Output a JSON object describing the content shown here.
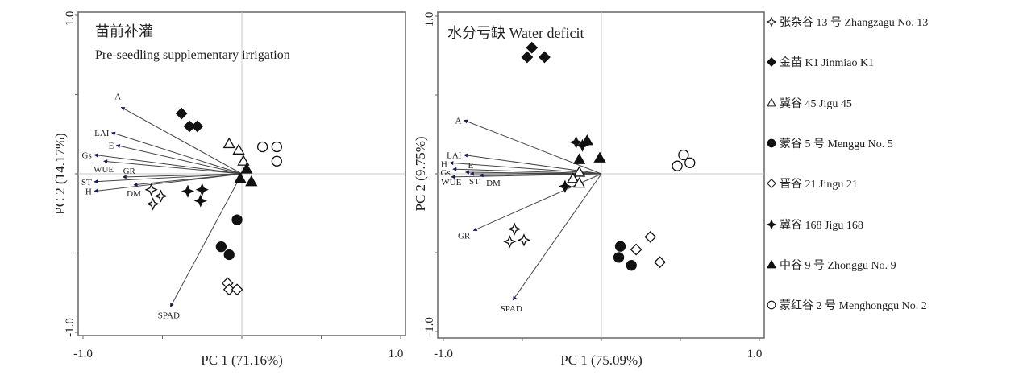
{
  "chart_data": [
    {
      "type": "scatter",
      "subtype": "pca-biplot",
      "title_cn": "苗前补灌",
      "title_en": "Pre-seedling supplementary irrigation",
      "xlabel": "PC 1 (71.16%)",
      "ylabel": "PC 2 (14.17%)",
      "xlim": [
        -1.0,
        1.0
      ],
      "ylim": [
        -1.0,
        1.0
      ],
      "xtick_labels": [
        "-1.0",
        "1.0"
      ],
      "ytick_labels": [
        "1.0",
        "-1.0"
      ],
      "vectors": [
        {
          "name": "A",
          "x": -0.76,
          "y": 0.42
        },
        {
          "name": "LAI",
          "x": -0.82,
          "y": 0.26
        },
        {
          "name": "E",
          "x": -0.79,
          "y": 0.18
        },
        {
          "name": "Gs",
          "x": -0.93,
          "y": 0.12
        },
        {
          "name": "WUE",
          "x": -0.87,
          "y": 0.08
        },
        {
          "name": "GR",
          "x": -0.75,
          "y": -0.02
        },
        {
          "name": "ST",
          "x": -0.93,
          "y": -0.05
        },
        {
          "name": "H",
          "x": -0.93,
          "y": -0.11
        },
        {
          "name": "DM",
          "x": -0.68,
          "y": -0.07
        },
        {
          "name": "SPAD",
          "x": -0.45,
          "y": -0.84
        }
      ],
      "series": [
        {
          "key": "zhangzagu13",
          "points": [
            [
              -0.57,
              -0.1
            ],
            [
              -0.51,
              -0.14
            ],
            [
              -0.56,
              -0.19
            ]
          ]
        },
        {
          "key": "jinmiaoK1",
          "points": [
            [
              -0.38,
              0.38
            ],
            [
              -0.33,
              0.3
            ],
            [
              -0.28,
              0.3
            ]
          ]
        },
        {
          "key": "jigu45",
          "points": [
            [
              -0.08,
              0.19
            ],
            [
              -0.02,
              0.15
            ],
            [
              0.01,
              0.08
            ]
          ]
        },
        {
          "key": "menggu5",
          "points": [
            [
              -0.03,
              -0.29
            ],
            [
              -0.13,
              -0.46
            ],
            [
              -0.08,
              -0.51
            ]
          ]
        },
        {
          "key": "jingu21",
          "points": [
            [
              -0.09,
              -0.69
            ],
            [
              -0.08,
              -0.73
            ],
            [
              -0.03,
              -0.73
            ]
          ]
        },
        {
          "key": "jigu168",
          "points": [
            [
              -0.34,
              -0.11
            ],
            [
              -0.25,
              -0.1
            ],
            [
              -0.26,
              -0.17
            ]
          ]
        },
        {
          "key": "zhonggu9",
          "points": [
            [
              0.03,
              0.03
            ],
            [
              -0.01,
              -0.03
            ],
            [
              0.06,
              -0.05
            ]
          ]
        },
        {
          "key": "menghonggu2",
          "points": [
            [
              0.13,
              0.17
            ],
            [
              0.22,
              0.17
            ],
            [
              0.22,
              0.08
            ]
          ]
        }
      ]
    },
    {
      "type": "scatter",
      "subtype": "pca-biplot",
      "title_cn": "水分亏缺 Water deficit",
      "title_en": "",
      "xlabel": "PC 1 (75.09%)",
      "ylabel": "PC 2 (9.75%)",
      "xlim": [
        -1.0,
        1.0
      ],
      "ylim": [
        -1.0,
        1.0
      ],
      "xtick_labels": [
        "-1.0",
        "1.0"
      ],
      "ytick_labels": [
        "1.0",
        "-1.0"
      ],
      "vectors": [
        {
          "name": "A",
          "x": -0.87,
          "y": 0.34
        },
        {
          "name": "LAI",
          "x": -0.87,
          "y": 0.12
        },
        {
          "name": "H",
          "x": -0.96,
          "y": 0.07
        },
        {
          "name": "Gs",
          "x": -0.94,
          "y": 0.03
        },
        {
          "name": "E",
          "x": -0.86,
          "y": 0.01
        },
        {
          "name": "ST",
          "x": -0.83,
          "y": 0.0
        },
        {
          "name": "WUE",
          "x": -0.95,
          "y": -0.02
        },
        {
          "name": "DM",
          "x": -0.77,
          "y": -0.01
        },
        {
          "name": "GR",
          "x": -0.81,
          "y": -0.36
        },
        {
          "name": "SPAD",
          "x": -0.56,
          "y": -0.8
        }
      ],
      "series": [
        {
          "key": "zhangzagu13",
          "points": [
            [
              -0.55,
              -0.35
            ],
            [
              -0.58,
              -0.43
            ],
            [
              -0.49,
              -0.42
            ]
          ]
        },
        {
          "key": "jinmiaoK1",
          "points": [
            [
              -0.44,
              0.8
            ],
            [
              -0.47,
              0.74
            ],
            [
              -0.36,
              0.74
            ]
          ]
        },
        {
          "key": "jigu45",
          "points": [
            [
              -0.14,
              0.01
            ],
            [
              -0.18,
              -0.03
            ],
            [
              -0.14,
              -0.06
            ]
          ]
        },
        {
          "key": "menggu5",
          "points": [
            [
              0.12,
              -0.46
            ],
            [
              0.11,
              -0.53
            ],
            [
              0.19,
              -0.58
            ]
          ]
        },
        {
          "key": "jingu21",
          "points": [
            [
              0.31,
              -0.4
            ],
            [
              0.22,
              -0.48
            ],
            [
              0.37,
              -0.56
            ]
          ]
        },
        {
          "key": "jigu168",
          "points": [
            [
              -0.16,
              0.2
            ],
            [
              -0.12,
              0.18
            ],
            [
              -0.23,
              -0.08
            ]
          ]
        },
        {
          "key": "zhonggu9",
          "points": [
            [
              -0.09,
              0.21
            ],
            [
              -0.14,
              0.09
            ],
            [
              -0.01,
              0.1
            ]
          ]
        },
        {
          "key": "menghonggu2",
          "points": [
            [
              0.52,
              0.12
            ],
            [
              0.56,
              0.07
            ],
            [
              0.48,
              0.05
            ]
          ]
        }
      ]
    }
  ],
  "legend": {
    "placement": "right",
    "items": [
      {
        "key": "zhangzagu13",
        "label": "张杂谷 13 号 Zhangzagu No. 13",
        "marker": "open-star"
      },
      {
        "key": "jinmiaoK1",
        "label": "金苗 K1 Jinmiao K1",
        "marker": "filled-diamond"
      },
      {
        "key": "jigu45",
        "label": "冀谷 45 Jigu 45",
        "marker": "open-triangle"
      },
      {
        "key": "menggu5",
        "label": "蒙谷 5 号 Menggu No. 5",
        "marker": "filled-circle"
      },
      {
        "key": "jingu21",
        "label": "晋谷 21 Jingu 21",
        "marker": "open-diamond"
      },
      {
        "key": "jigu168",
        "label": "冀谷 168 Jigu 168",
        "marker": "filled-star"
      },
      {
        "key": "zhonggu9",
        "label": "中谷 9 号 Zhonggu No. 9",
        "marker": "filled-triangle"
      },
      {
        "key": "menghonggu2",
        "label": "蒙红谷 2 号 Menghonggu No. 2",
        "marker": "open-circle"
      }
    ]
  },
  "colors": {
    "axis": "#555555",
    "arrow": "#444444",
    "arrowhead": "#1a1a5a",
    "marker": "#111111"
  }
}
